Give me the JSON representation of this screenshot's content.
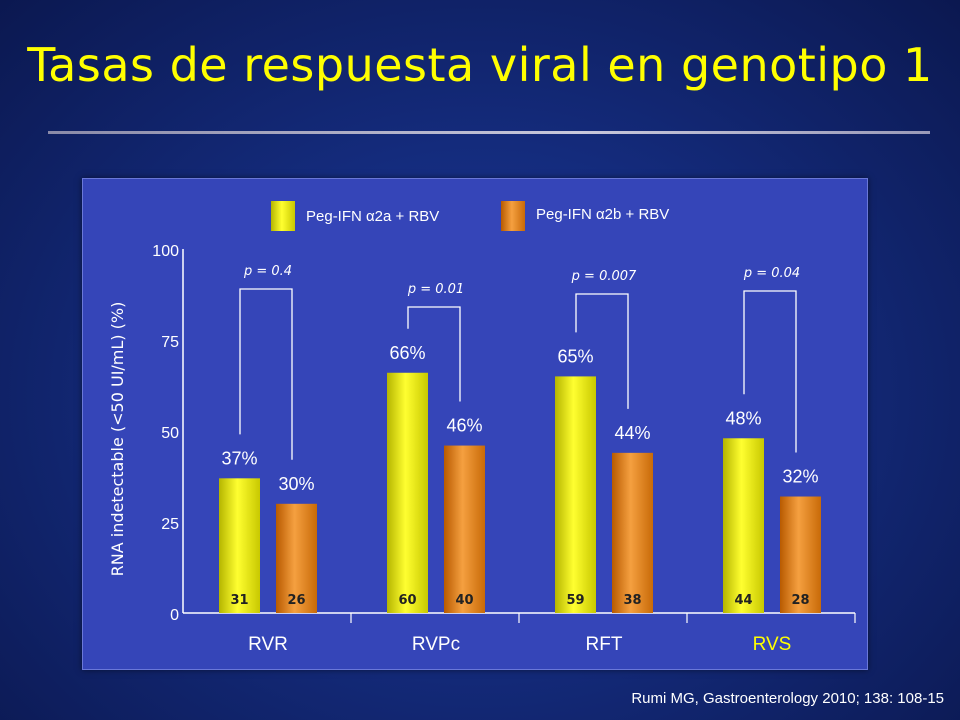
{
  "slide": {
    "title": "Tasas de respuesta viral en genotipo 1",
    "citation": "Rumi MG, Gastroenterology  2010; 138: 108-15"
  },
  "colors": {
    "title": "#ffff00",
    "series_a": "#f2f200",
    "series_b": "#e07a10",
    "highlight_category": "#ffff00",
    "panel": "#3545b8"
  },
  "chart_data": {
    "type": "bar",
    "title": "",
    "ylabel": "RNA indetectable (<50 UI/mL) (%)",
    "xlabel": "",
    "ylim": [
      0,
      100
    ],
    "yticks": [
      0,
      25,
      50,
      75,
      100
    ],
    "categories": [
      "RVR",
      "RVPc",
      "RFT",
      "RVS"
    ],
    "highlighted_category": "RVS",
    "series": [
      {
        "name": "Peg-IFN α2a + RBV",
        "values": [
          37,
          66,
          65,
          48
        ],
        "value_labels": [
          "37%",
          "66%",
          "65%",
          "48%"
        ],
        "counts": [
          "31",
          "60",
          "59",
          "44"
        ]
      },
      {
        "name": "Peg-IFN α2b + RBV",
        "values": [
          30,
          46,
          44,
          32
        ],
        "value_labels": [
          "30%",
          "46%",
          "44%",
          "32%"
        ],
        "counts": [
          "26",
          "40",
          "38",
          "28"
        ]
      }
    ],
    "p_values": [
      "p = 0.4",
      "p = 0.01",
      "p = 0.007",
      "p = 0.04"
    ],
    "legend_placement": "top",
    "grid": false
  }
}
